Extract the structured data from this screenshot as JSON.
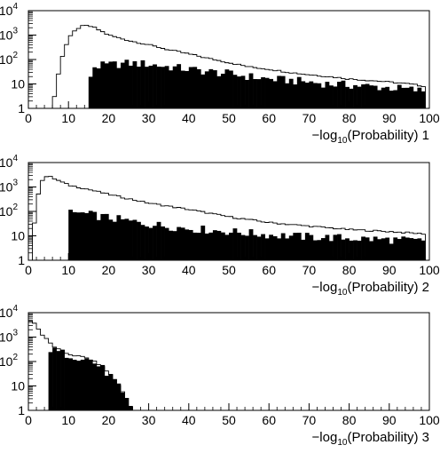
{
  "chart_data": [
    {
      "type": "histogram",
      "scale": "log-y",
      "xlim": [
        0,
        100
      ],
      "ylim": [
        1,
        10000
      ],
      "xticks": [
        "0",
        "10",
        "20",
        "30",
        "40",
        "50",
        "60",
        "70",
        "80",
        "90",
        "100"
      ],
      "yticks": [
        {
          "value": 1,
          "label": "1"
        },
        {
          "value": 10,
          "label": "10"
        },
        {
          "value": 100,
          "label": "10",
          "exp": "2"
        },
        {
          "value": 1000,
          "label": "10",
          "exp": "3"
        },
        {
          "value": 10000,
          "label": "10",
          "exp": "4"
        }
      ],
      "xlabel": {
        "prefix": "−log",
        "sub": "10",
        "suffix": "(Probability) 1"
      },
      "series": [
        {
          "style": "outline",
          "x": [
            6,
            8,
            10,
            12,
            14,
            16,
            18,
            20,
            25,
            30,
            35,
            40,
            45,
            50,
            55,
            60,
            65,
            70,
            75,
            80,
            85,
            90,
            95,
            99
          ],
          "y": [
            1,
            80,
            700,
            1800,
            2500,
            2200,
            1500,
            1000,
            600,
            400,
            250,
            170,
            110,
            75,
            50,
            40,
            30,
            24,
            20,
            16,
            14,
            12,
            10,
            8
          ]
        },
        {
          "style": "filled",
          "x": [
            15,
            16,
            20,
            25,
            30,
            35,
            40,
            45,
            50,
            55,
            60,
            65,
            70,
            75,
            80,
            85,
            90,
            95,
            99
          ],
          "y": [
            10,
            50,
            60,
            70,
            65,
            50,
            40,
            32,
            26,
            20,
            16,
            14,
            12,
            10,
            9,
            8,
            7,
            6,
            5
          ]
        }
      ]
    },
    {
      "type": "histogram",
      "scale": "log-y",
      "xlim": [
        0,
        100
      ],
      "ylim": [
        1,
        10000
      ],
      "xticks": [
        "0",
        "10",
        "20",
        "30",
        "40",
        "50",
        "60",
        "70",
        "80",
        "90",
        "100"
      ],
      "yticks": [
        {
          "value": 1,
          "label": "1"
        },
        {
          "value": 10,
          "label": "10"
        },
        {
          "value": 100,
          "label": "10",
          "exp": "2"
        },
        {
          "value": 1000,
          "label": "10",
          "exp": "3"
        },
        {
          "value": 10000,
          "label": "10",
          "exp": "4"
        }
      ],
      "xlabel": {
        "prefix": "−log",
        "sub": "10",
        "suffix": "(Probability) 2"
      },
      "series": [
        {
          "style": "outline",
          "x": [
            1,
            2,
            3,
            4,
            5,
            7,
            10,
            15,
            20,
            25,
            30,
            40,
            50,
            60,
            70,
            80,
            90,
            99
          ],
          "y": [
            5,
            200,
            1500,
            2500,
            2800,
            2000,
            1200,
            800,
            500,
            330,
            220,
            120,
            60,
            35,
            25,
            18,
            15,
            12
          ]
        },
        {
          "style": "filled",
          "x": [
            10,
            12,
            15,
            20,
            25,
            30,
            40,
            50,
            60,
            70,
            80,
            90,
            99
          ],
          "y": [
            80,
            90,
            75,
            55,
            40,
            30,
            20,
            15,
            11,
            9,
            8,
            7,
            6
          ]
        }
      ]
    },
    {
      "type": "histogram",
      "scale": "log-y",
      "xlim": [
        0,
        100
      ],
      "ylim": [
        1,
        10000
      ],
      "xticks": [
        "0",
        "10",
        "20",
        "30",
        "40",
        "50",
        "60",
        "70",
        "80",
        "90",
        "100"
      ],
      "yticks": [
        {
          "value": 1,
          "label": "1"
        },
        {
          "value": 10,
          "label": "10"
        },
        {
          "value": 100,
          "label": "10",
          "exp": "2"
        },
        {
          "value": 1000,
          "label": "10",
          "exp": "3"
        },
        {
          "value": 10000,
          "label": "10",
          "exp": "4"
        }
      ],
      "xlabel": {
        "prefix": "−log",
        "sub": "10",
        "suffix": "(Probability) 3"
      },
      "series": [
        {
          "style": "outline",
          "x": [
            0,
            1,
            2,
            3,
            4,
            5,
            6,
            8,
            10,
            12,
            14,
            16,
            18,
            20,
            22,
            24
          ],
          "y": [
            4000,
            5000,
            3000,
            1500,
            1000,
            700,
            450,
            280,
            200,
            170,
            150,
            110,
            70,
            35,
            15,
            4
          ]
        },
        {
          "style": "filled",
          "x": [
            5,
            6,
            8,
            10,
            12,
            14,
            16,
            18,
            20,
            22,
            24,
            25,
            26
          ],
          "y": [
            300,
            280,
            230,
            190,
            160,
            140,
            100,
            60,
            30,
            12,
            3,
            2,
            1
          ]
        }
      ]
    }
  ]
}
